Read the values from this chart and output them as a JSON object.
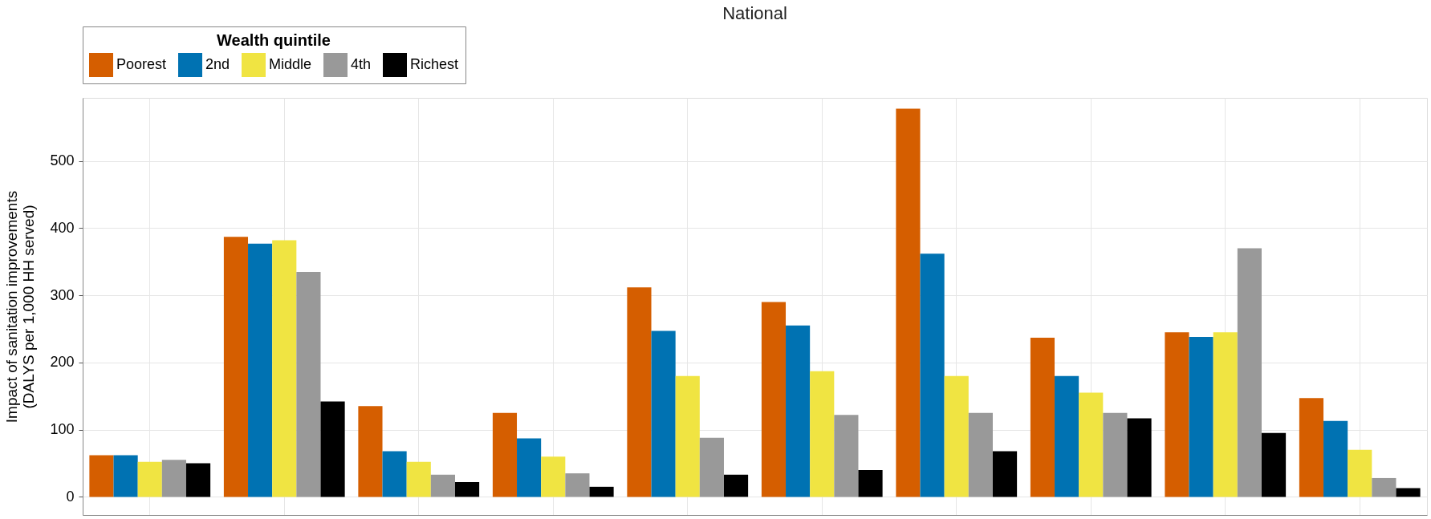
{
  "chart_data": {
    "type": "bar",
    "title": "National",
    "ylabel": "Impact of sanitation improvements\n(DALYS per 1,000 HH served)",
    "legend_title": "Wealth quintile",
    "categories": [
      null,
      null,
      null,
      null,
      null,
      null,
      null,
      null,
      null,
      null
    ],
    "series": [
      {
        "name": "Poorest",
        "color": "#d55e00",
        "values": [
          62,
          387,
          135,
          125,
          312,
          290,
          578,
          237,
          245,
          147
        ]
      },
      {
        "name": "2nd",
        "color": "#0072b2",
        "values": [
          62,
          377,
          68,
          87,
          247,
          255,
          362,
          180,
          238,
          113
        ]
      },
      {
        "name": "Middle",
        "color": "#f0e442",
        "values": [
          52,
          382,
          52,
          60,
          180,
          187,
          180,
          155,
          245,
          70
        ]
      },
      {
        "name": "4th",
        "color": "#999999",
        "values": [
          55,
          335,
          33,
          35,
          88,
          122,
          125,
          125,
          370,
          28
        ]
      },
      {
        "name": "Richest",
        "color": "#000000",
        "values": [
          50,
          142,
          22,
          15,
          33,
          40,
          68,
          117,
          95,
          13
        ]
      }
    ],
    "ylim": [
      -27,
      594
    ],
    "yticks": [
      0,
      100,
      200,
      300,
      400,
      500
    ],
    "grid": true,
    "legend": "top",
    "tick_labels": "y"
  }
}
